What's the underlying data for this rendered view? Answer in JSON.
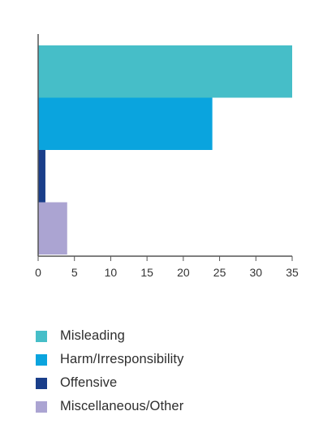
{
  "chart_data": {
    "type": "bar",
    "orientation": "horizontal",
    "title": "",
    "xlabel": "",
    "ylabel": "",
    "xlim": [
      0,
      35
    ],
    "x_ticks": [
      0,
      5,
      10,
      15,
      20,
      25,
      30,
      35
    ],
    "grid": false,
    "legend_placement": "bottom",
    "series": [
      {
        "name": "Misleading",
        "value": 35,
        "color": "#46BEC8"
      },
      {
        "name": "Harm/Irresponsibility",
        "value": 24,
        "color": "#0AA4DE"
      },
      {
        "name": "Offensive",
        "value": 1,
        "color": "#1A3E8A"
      },
      {
        "name": "Miscellaneous/Other",
        "value": 4,
        "color": "#ABA4D2"
      }
    ]
  },
  "legend": {
    "items": [
      {
        "label": "Misleading",
        "color": "#46BEC8"
      },
      {
        "label": "Harm/Irresponsibility",
        "color": "#0AA4DE"
      },
      {
        "label": "Offensive",
        "color": "#1A3E8A"
      },
      {
        "label": "Miscellaneous/Other",
        "color": "#ABA4D2"
      }
    ]
  }
}
